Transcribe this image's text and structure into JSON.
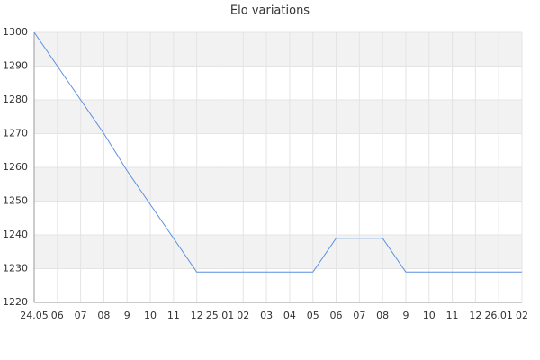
{
  "chart_data": {
    "type": "line",
    "title": "Elo variations",
    "categories": [
      "24.05",
      "06",
      "07",
      "08",
      "9",
      "10",
      "11",
      "12",
      "25.01",
      "02",
      "03",
      "04",
      "05",
      "06",
      "07",
      "08",
      "9",
      "10",
      "11",
      "12",
      "26.01",
      "02"
    ],
    "series": [
      {
        "color": "#5b8fe0",
        "values": [
          1300,
          1290,
          1280,
          1270,
          1259,
          1249,
          1239,
          1229,
          1229,
          1229,
          1229,
          1229,
          1229,
          1239,
          1239,
          1239,
          1229,
          1229,
          1229,
          1229,
          1229,
          1229
        ]
      }
    ],
    "ylim": [
      1220,
      1300
    ],
    "yticks": [
      1220,
      1230,
      1240,
      1250,
      1260,
      1270,
      1280,
      1290,
      1300
    ],
    "grid": true
  }
}
